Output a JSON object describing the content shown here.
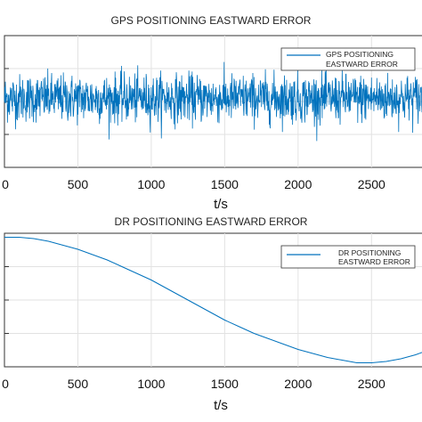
{
  "chart_data": [
    {
      "type": "line",
      "title": "GPS POSITIONING EASTWARD ERROR",
      "xlabel": "t/s",
      "ylabel": "",
      "x_ticks": [
        "0",
        "500",
        "1000",
        "1500",
        "2000",
        "2500"
      ],
      "xlim": [
        0,
        2850
      ],
      "ylim": [
        -1,
        1
      ],
      "grid": true,
      "legend": {
        "position": "top-right",
        "entries": [
          "GPS POSITIONING",
          "EASTWARD ERROR"
        ]
      },
      "series": [
        {
          "name": "GPS POSITIONING EASTWARD ERROR",
          "color": "#0072bd",
          "description_values": {
            "mean": 0.05,
            "std": 0.18,
            "min": -0.6,
            "max": 0.6
          }
        }
      ]
    },
    {
      "type": "line",
      "title": "DR POSITIONING EASTWARD ERROR",
      "xlabel": "t/s",
      "ylabel": "",
      "x_ticks": [
        "0",
        "500",
        "1000",
        "1500",
        "2000",
        "2500"
      ],
      "xlim": [
        0,
        2850
      ],
      "ylim": [
        0,
        1
      ],
      "grid": true,
      "legend": {
        "position": "top-right",
        "entries": [
          "DR POSITIONING",
          "EASTWARD ERROR"
        ]
      },
      "series": [
        {
          "name": "DR POSITIONING EASTWARD ERROR",
          "color": "#0072bd",
          "x": [
            0,
            100,
            200,
            300,
            400,
            500,
            600,
            700,
            800,
            900,
            1000,
            1100,
            1200,
            1300,
            1400,
            1500,
            1600,
            1700,
            1800,
            1900,
            2000,
            2100,
            2200,
            2300,
            2400,
            2500,
            2600,
            2700,
            2800,
            2850
          ],
          "y": [
            0.97,
            0.97,
            0.96,
            0.94,
            0.91,
            0.88,
            0.84,
            0.8,
            0.75,
            0.7,
            0.65,
            0.59,
            0.53,
            0.47,
            0.41,
            0.35,
            0.3,
            0.25,
            0.21,
            0.17,
            0.13,
            0.1,
            0.07,
            0.05,
            0.03,
            0.03,
            0.04,
            0.06,
            0.09,
            0.11
          ]
        }
      ]
    }
  ]
}
